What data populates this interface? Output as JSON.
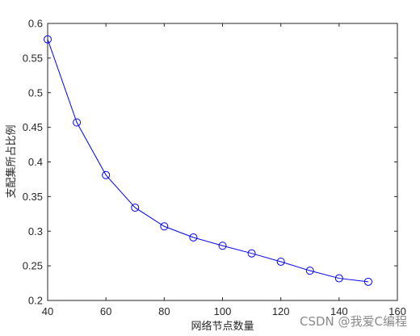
{
  "chart_data": {
    "type": "line",
    "title": "",
    "xlabel": "网络节点数量",
    "ylabel": "支配集所占比例",
    "xlim": [
      40,
      160
    ],
    "ylim": [
      0.2,
      0.6
    ],
    "x_ticks": [
      "40",
      "60",
      "80",
      "100",
      "120",
      "140",
      "160"
    ],
    "y_ticks": [
      "0.2",
      "0.25",
      "0.3",
      "0.35",
      "0.4",
      "0.45",
      "0.5",
      "0.55",
      "0.6"
    ],
    "grid": false,
    "legend": "none",
    "series": [
      {
        "color": "#0000ff",
        "marker": "circle",
        "x": [
          40,
          50,
          60,
          70,
          80,
          90,
          100,
          110,
          120,
          130,
          140,
          150
        ],
        "y": [
          0.577,
          0.457,
          0.381,
          0.334,
          0.307,
          0.291,
          0.279,
          0.268,
          0.256,
          0.243,
          0.232,
          0.227
        ]
      }
    ]
  },
  "watermark": "CSDN @我爱C编程"
}
